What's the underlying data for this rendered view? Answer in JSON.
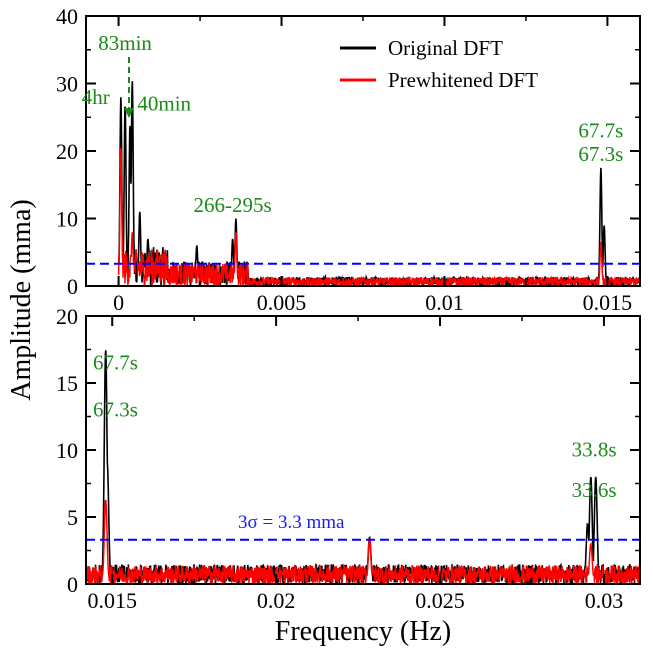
{
  "figure": {
    "ylabel": "Amplitude (mma)",
    "xlabel": "Frequency (Hz)"
  },
  "colors": {
    "original": "#000000",
    "prewhitened": "#ff0000",
    "threshold": "#0000ff",
    "annotation": "#1a8a1a"
  },
  "legend": {
    "position": "top-right",
    "original_label": "Original DFT",
    "prewhitened_label": "Prewhitened DFT"
  },
  "sigma_label": "3σ = 3.3 mma",
  "chart_data": [
    {
      "type": "line",
      "panel": "top",
      "xlim": [
        -0.001,
        0.016
      ],
      "ylim": [
        0,
        40
      ],
      "x_ticks": [
        0,
        0.005,
        0.01,
        0.015
      ],
      "x_tick_labels": [
        "0",
        "0.005",
        "0.01",
        "0.015"
      ],
      "y_ticks": [
        0,
        10,
        20,
        30,
        40
      ],
      "y_tick_labels": [
        "0",
        "10",
        "20",
        "30",
        "40"
      ],
      "threshold": 3.3,
      "series": [
        {
          "name": "Original DFT",
          "peaks": [
            {
              "x": 7e-05,
              "y": 28
            },
            {
              "x": 0.0002,
              "y": 27
            },
            {
              "x": 0.00035,
              "y": 24
            },
            {
              "x": 0.00042,
              "y": 30.5
            },
            {
              "x": 0.00065,
              "y": 11
            },
            {
              "x": 0.0009,
              "y": 7
            },
            {
              "x": 0.0024,
              "y": 6
            },
            {
              "x": 0.0035,
              "y": 7
            },
            {
              "x": 0.0036,
              "y": 10
            },
            {
              "x": 0.0148,
              "y": 17.5
            },
            {
              "x": 0.0149,
              "y": 9
            }
          ]
        },
        {
          "name": "Prewhitened DFT",
          "peaks": [
            {
              "x": 7e-05,
              "y": 20.5
            },
            {
              "x": 0.00042,
              "y": 8
            },
            {
              "x": 0.0036,
              "y": 8
            },
            {
              "x": 0.0148,
              "y": 6.5
            }
          ]
        }
      ],
      "annotations": [
        {
          "text": "83min",
          "x": 0.0002,
          "y": 35
        },
        {
          "text": "4hr",
          "x": -0.0007,
          "y": 27
        },
        {
          "text": "40min",
          "x": 0.0014,
          "y": 26
        },
        {
          "text": "266-295s",
          "x": 0.0035,
          "y": 11
        },
        {
          "text": "67.7s",
          "x": 0.0148,
          "y": 22
        },
        {
          "text": "67.3s",
          "x": 0.0148,
          "y": 18.5
        }
      ]
    },
    {
      "type": "line",
      "panel": "bottom",
      "xlim": [
        0.0142,
        0.0311
      ],
      "ylim": [
        0,
        20
      ],
      "x_ticks": [
        0.015,
        0.02,
        0.025,
        0.03
      ],
      "x_tick_labels": [
        "0.015",
        "0.02",
        "0.025",
        "0.03"
      ],
      "y_ticks": [
        0,
        5,
        10,
        15,
        20
      ],
      "y_tick_labels": [
        "0",
        "5",
        "10",
        "15",
        "20"
      ],
      "threshold": 3.3,
      "series": [
        {
          "name": "Original DFT",
          "peaks": [
            {
              "x": 0.0148,
              "y": 17.5
            },
            {
              "x": 0.01485,
              "y": 9
            },
            {
              "x": 0.02285,
              "y": 3.5
            },
            {
              "x": 0.0296,
              "y": 8
            },
            {
              "x": 0.02975,
              "y": 8
            },
            {
              "x": 0.0295,
              "y": 4.5
            }
          ]
        },
        {
          "name": "Prewhitened DFT",
          "peaks": [
            {
              "x": 0.0148,
              "y": 6.3
            },
            {
              "x": 0.02285,
              "y": 3.4
            },
            {
              "x": 0.0296,
              "y": 3
            }
          ]
        }
      ],
      "annotations": [
        {
          "text": "67.7s",
          "x": 0.0151,
          "y": 16
        },
        {
          "text": "67.3s",
          "x": 0.0151,
          "y": 12.5
        },
        {
          "text": "33.8s",
          "x": 0.0297,
          "y": 9.5
        },
        {
          "text": "33.6s",
          "x": 0.0297,
          "y": 6.5
        }
      ]
    }
  ]
}
